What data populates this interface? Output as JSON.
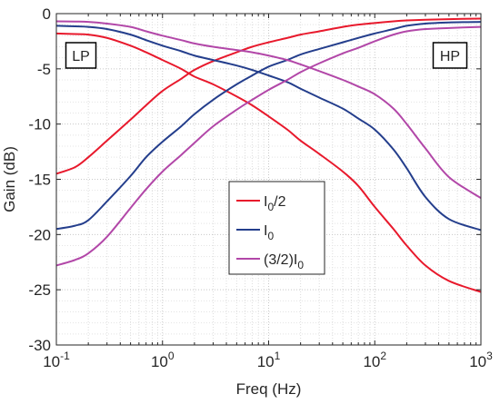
{
  "chart_data": {
    "type": "line",
    "title": "",
    "xlabel": "Freq (Hz)",
    "ylabel": "Gain (dB)",
    "xscale": "log",
    "xlim": [
      0.1,
      1000
    ],
    "ylim": [
      -30,
      0
    ],
    "grid": "on (major and minor, dotted)",
    "x_ticks": [
      0.1,
      1,
      10,
      100,
      1000
    ],
    "x_tick_labels": [
      {
        "base": "10",
        "exp": "-1"
      },
      {
        "base": "10",
        "exp": "0"
      },
      {
        "base": "10",
        "exp": "1"
      },
      {
        "base": "10",
        "exp": "2"
      },
      {
        "base": "10",
        "exp": "3"
      }
    ],
    "y_ticks": [
      0,
      -5,
      -10,
      -15,
      -20,
      -25,
      -30
    ],
    "y_tick_labels": [
      "0",
      "-5",
      "-10",
      "-15",
      "-20",
      "-25",
      "-30"
    ],
    "legend_position": "center-right",
    "legend": [
      {
        "series": "I0/2",
        "label_main": "I",
        "label_sub": "0",
        "label_tail": "/2",
        "color": "#e8192c"
      },
      {
        "series": "I0",
        "label_main": "I",
        "label_sub": "0",
        "label_tail": "",
        "color": "#243e8c"
      },
      {
        "series": "(3/2)I0",
        "label_main": "(3/2)I",
        "label_sub": "0",
        "label_tail": "",
        "color": "#b247a8"
      }
    ],
    "annotations": [
      {
        "text": "LP",
        "position": "top-left"
      },
      {
        "text": "HP",
        "position": "top-right"
      }
    ],
    "series": [
      {
        "name": "I0/2 LP",
        "color": "#e8192c",
        "points": [
          [
            0.1,
            -14.5
          ],
          [
            0.15,
            -13.9
          ],
          [
            0.2,
            -13.0
          ],
          [
            0.3,
            -11.5
          ],
          [
            0.5,
            -9.6
          ],
          [
            0.7,
            -8.3
          ],
          [
            1,
            -7.0
          ],
          [
            1.5,
            -5.9
          ],
          [
            2,
            -5.1
          ],
          [
            3,
            -4.3
          ],
          [
            5,
            -3.5
          ],
          [
            7,
            -3.0
          ],
          [
            10,
            -2.6
          ],
          [
            15,
            -2.2
          ],
          [
            20,
            -1.9
          ],
          [
            30,
            -1.6
          ],
          [
            50,
            -1.2
          ],
          [
            70,
            -1.0
          ],
          [
            100,
            -0.85
          ],
          [
            150,
            -0.7
          ],
          [
            200,
            -0.62
          ],
          [
            300,
            -0.55
          ],
          [
            500,
            -0.5
          ],
          [
            1000,
            -0.45
          ]
        ]
      },
      {
        "name": "I0/2 HP",
        "color": "#e8192c",
        "points": [
          [
            0.1,
            -1.8
          ],
          [
            0.15,
            -1.85
          ],
          [
            0.2,
            -1.9
          ],
          [
            0.3,
            -2.2
          ],
          [
            0.5,
            -2.9
          ],
          [
            0.7,
            -3.5
          ],
          [
            1,
            -4.2
          ],
          [
            1.5,
            -5.0
          ],
          [
            2,
            -5.7
          ],
          [
            3,
            -6.4
          ],
          [
            5,
            -7.5
          ],
          [
            7,
            -8.3
          ],
          [
            10,
            -9.3
          ],
          [
            15,
            -10.5
          ],
          [
            20,
            -11.5
          ],
          [
            30,
            -12.7
          ],
          [
            50,
            -14.3
          ],
          [
            70,
            -15.6
          ],
          [
            100,
            -17.5
          ],
          [
            150,
            -19.5
          ],
          [
            200,
            -21.0
          ],
          [
            300,
            -22.8
          ],
          [
            500,
            -24.2
          ],
          [
            1000,
            -25.2
          ]
        ]
      },
      {
        "name": "I0 LP",
        "color": "#243e8c",
        "points": [
          [
            0.1,
            -19.5
          ],
          [
            0.15,
            -19.2
          ],
          [
            0.2,
            -18.7
          ],
          [
            0.3,
            -17.0
          ],
          [
            0.5,
            -14.7
          ],
          [
            0.7,
            -13.0
          ],
          [
            1,
            -11.6
          ],
          [
            1.5,
            -10.2
          ],
          [
            2,
            -9.1
          ],
          [
            3,
            -7.8
          ],
          [
            5,
            -6.4
          ],
          [
            7,
            -5.6
          ],
          [
            10,
            -4.8
          ],
          [
            15,
            -4.2
          ],
          [
            20,
            -3.7
          ],
          [
            30,
            -3.2
          ],
          [
            50,
            -2.6
          ],
          [
            70,
            -2.2
          ],
          [
            100,
            -1.8
          ],
          [
            150,
            -1.4
          ],
          [
            200,
            -1.1
          ],
          [
            300,
            -0.9
          ],
          [
            500,
            -0.8
          ],
          [
            1000,
            -0.75
          ]
        ]
      },
      {
        "name": "I0 HP",
        "color": "#243e8c",
        "points": [
          [
            0.1,
            -1.1
          ],
          [
            0.15,
            -1.15
          ],
          [
            0.2,
            -1.2
          ],
          [
            0.3,
            -1.4
          ],
          [
            0.5,
            -1.9
          ],
          [
            0.7,
            -2.4
          ],
          [
            1,
            -2.9
          ],
          [
            1.5,
            -3.4
          ],
          [
            2,
            -3.8
          ],
          [
            3,
            -4.2
          ],
          [
            5,
            -4.7
          ],
          [
            7,
            -5.1
          ],
          [
            10,
            -5.6
          ],
          [
            15,
            -6.2
          ],
          [
            20,
            -6.8
          ],
          [
            30,
            -7.6
          ],
          [
            50,
            -8.6
          ],
          [
            70,
            -9.5
          ],
          [
            100,
            -10.5
          ],
          [
            150,
            -12.3
          ],
          [
            200,
            -14.0
          ],
          [
            300,
            -16.6
          ],
          [
            500,
            -18.6
          ],
          [
            1000,
            -19.6
          ]
        ]
      },
      {
        "name": "(3/2)I0 LP",
        "color": "#b247a8",
        "points": [
          [
            0.1,
            -22.8
          ],
          [
            0.15,
            -22.3
          ],
          [
            0.2,
            -21.7
          ],
          [
            0.3,
            -20.2
          ],
          [
            0.5,
            -17.6
          ],
          [
            0.7,
            -15.9
          ],
          [
            1,
            -14.3
          ],
          [
            1.5,
            -12.8
          ],
          [
            2,
            -11.7
          ],
          [
            3,
            -10.2
          ],
          [
            5,
            -8.7
          ],
          [
            7,
            -7.8
          ],
          [
            10,
            -6.9
          ],
          [
            15,
            -6.0
          ],
          [
            20,
            -5.3
          ],
          [
            30,
            -4.5
          ],
          [
            50,
            -3.6
          ],
          [
            70,
            -3.1
          ],
          [
            100,
            -2.5
          ],
          [
            150,
            -1.9
          ],
          [
            200,
            -1.6
          ],
          [
            300,
            -1.4
          ],
          [
            500,
            -1.3
          ],
          [
            1000,
            -1.2
          ]
        ]
      },
      {
        "name": "(3/2)I0 HP",
        "color": "#b247a8",
        "points": [
          [
            0.1,
            -0.7
          ],
          [
            0.15,
            -0.72
          ],
          [
            0.2,
            -0.75
          ],
          [
            0.3,
            -0.9
          ],
          [
            0.5,
            -1.2
          ],
          [
            0.7,
            -1.6
          ],
          [
            1,
            -2.0
          ],
          [
            1.5,
            -2.4
          ],
          [
            2,
            -2.7
          ],
          [
            3,
            -3.0
          ],
          [
            5,
            -3.3
          ],
          [
            7,
            -3.5
          ],
          [
            10,
            -3.8
          ],
          [
            15,
            -4.2
          ],
          [
            20,
            -4.6
          ],
          [
            30,
            -5.2
          ],
          [
            50,
            -6.0
          ],
          [
            70,
            -6.6
          ],
          [
            100,
            -7.3
          ],
          [
            150,
            -8.6
          ],
          [
            200,
            -10.0
          ],
          [
            300,
            -12.2
          ],
          [
            500,
            -14.8
          ],
          [
            1000,
            -16.7
          ]
        ]
      }
    ]
  }
}
